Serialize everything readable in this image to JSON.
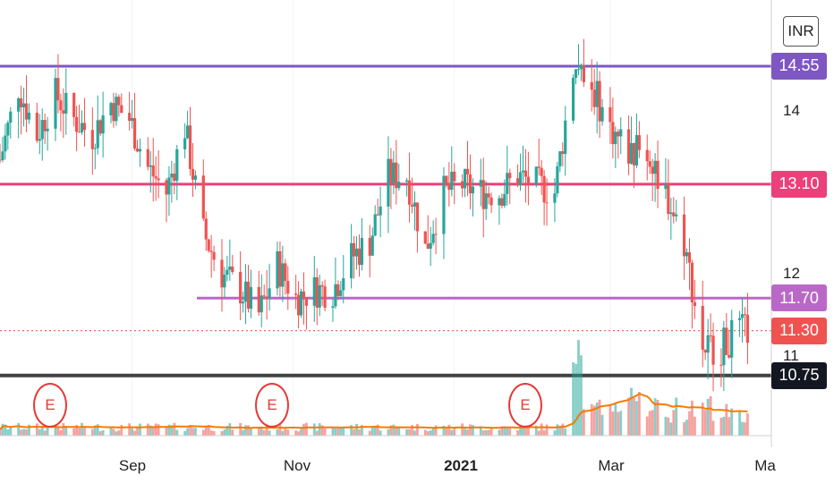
{
  "currency": "INR",
  "colors": {
    "up": "#26a69a",
    "down": "#ef5350",
    "volume_ma": "#f57c00"
  },
  "levels": [
    {
      "label": "14.55",
      "value": 14.55,
      "color": "#7e57c2",
      "line_color": "#7e57c2"
    },
    {
      "label": "13.10",
      "value": 13.1,
      "color": "#ec407a",
      "line_color": "#ec407a"
    },
    {
      "label": "11.70",
      "value": 11.7,
      "color": "#ba68c8",
      "line_color": "#ba68c8"
    },
    {
      "label": "11.30",
      "value": 11.3,
      "color": "#ef5350",
      "line_color": "#ef5350"
    },
    {
      "label": "10.75",
      "value": 10.75,
      "color": "#131722",
      "line_color": "#424242"
    }
  ],
  "y_ticks": [
    {
      "label": "14",
      "value": 14
    },
    {
      "label": "12",
      "value": 12
    },
    {
      "label": "11",
      "value": 11
    }
  ],
  "x_ticks": [
    "Sep",
    "Nov",
    "2021",
    "Mar",
    "Ma"
  ],
  "earnings_marker": "E",
  "chart_data": {
    "type": "candlestick",
    "y_range": [
      10.7,
      15.0
    ],
    "x_range": [
      "2020-07-13",
      "2021-05-01"
    ],
    "price_anchors": [
      [
        "2020-07-13",
        13.4
      ],
      [
        "2020-07-20",
        14.3
      ],
      [
        "2020-07-27",
        13.7
      ],
      [
        "2020-08-03",
        14.2
      ],
      [
        "2020-08-10",
        13.9
      ],
      [
        "2020-08-17",
        13.7
      ],
      [
        "2020-08-24",
        14.1
      ],
      [
        "2020-08-31",
        13.9
      ],
      [
        "2020-09-07",
        13.3
      ],
      [
        "2020-09-14",
        13.0
      ],
      [
        "2020-09-21",
        13.8
      ],
      [
        "2020-09-28",
        12.5
      ],
      [
        "2020-10-05",
        12.0
      ],
      [
        "2020-10-12",
        11.8
      ],
      [
        "2020-10-19",
        11.5
      ],
      [
        "2020-10-26",
        12.1
      ],
      [
        "2020-11-02",
        11.7
      ],
      [
        "2020-11-09",
        11.8
      ],
      [
        "2020-11-16",
        11.8
      ],
      [
        "2020-11-23",
        12.2
      ],
      [
        "2020-11-30",
        12.4
      ],
      [
        "2020-12-07",
        13.2
      ],
      [
        "2020-12-14",
        13.2
      ],
      [
        "2020-12-21",
        12.3
      ],
      [
        "2020-12-28",
        13.0
      ],
      [
        "2021-01-04",
        13.1
      ],
      [
        "2021-01-11",
        13.0
      ],
      [
        "2021-01-18",
        13.0
      ],
      [
        "2021-01-25",
        13.2
      ],
      [
        "2021-02-01",
        13.1
      ],
      [
        "2021-02-08",
        13.0
      ],
      [
        "2021-02-15",
        14.5
      ],
      [
        "2021-02-22",
        14.3
      ],
      [
        "2021-03-01",
        13.8
      ],
      [
        "2021-03-08",
        13.5
      ],
      [
        "2021-03-15",
        13.5
      ],
      [
        "2021-03-22",
        13.0
      ],
      [
        "2021-03-29",
        12.4
      ],
      [
        "2021-04-05",
        11.1
      ],
      [
        "2021-04-12",
        11.1
      ],
      [
        "2021-04-19",
        11.3
      ]
    ],
    "volume_spikes": [
      [
        "2021-02-16",
        0.9
      ],
      [
        "2021-03-11",
        0.45
      ],
      [
        "2021-03-18",
        0.35
      ]
    ]
  }
}
